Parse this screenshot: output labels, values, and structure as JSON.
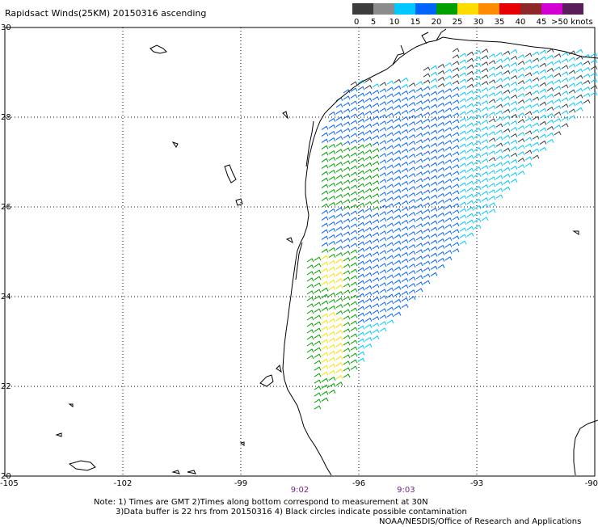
{
  "title": "Rapidsact Winds(25KM) 20150316 ascending",
  "legend": {
    "labels": [
      "0",
      "5",
      "10",
      "15",
      "20",
      "25",
      "30",
      "35",
      "40",
      "45",
      ">50 knots"
    ],
    "colors": [
      "#3c3c3c",
      "#8c8c8c",
      "#00c8ff",
      "#0064ff",
      "#00a000",
      "#ffdc00",
      "#ff8c00",
      "#e60000",
      "#8c2828",
      "#d200d2",
      "#5a1e5a"
    ]
  },
  "axes": {
    "lon_labels": [
      "-105",
      "-102",
      "-99",
      "-96",
      "-93",
      "-90"
    ],
    "lat_labels": [
      "30",
      "28",
      "26",
      "24",
      "22",
      "20"
    ]
  },
  "times": [
    {
      "label": "9:02",
      "lon": -97.5
    },
    {
      "label": "9:03",
      "lon": -94.8
    }
  ],
  "notes": {
    "line1": "Note: 1) Times are GMT 2)Times along bottom correspond to measurement at 30N",
    "line2": "3)Data buffer is 22 hrs from 20150316 4) Black circles indicate possible contamination",
    "line3": "NOAA/NESDIS/Office of Research and Applications"
  }
}
